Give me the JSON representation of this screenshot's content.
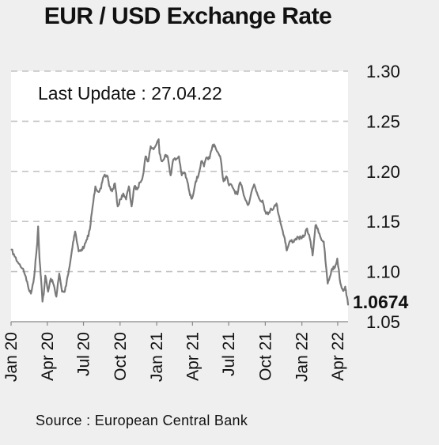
{
  "chart_data": {
    "type": "line",
    "title": "EUR / USD Exchange Rate",
    "annotation": "Last Update : 27.04.22",
    "source": "Source : European Central Bank",
    "ylim": [
      1.05,
      1.3
    ],
    "yticks": [
      "1.30",
      "1.25",
      "1.20",
      "1.15",
      "1.10",
      "1.05"
    ],
    "xlim": [
      "2020-01-01",
      "2022-04-27"
    ],
    "xticks": [
      {
        "label": "Jan 20",
        "date": "2020-01-01"
      },
      {
        "label": "Apr 20",
        "date": "2020-04-01"
      },
      {
        "label": "Jul 20",
        "date": "2020-07-01"
      },
      {
        "label": "Oct 20",
        "date": "2020-10-01"
      },
      {
        "label": "Jan 21",
        "date": "2021-01-01"
      },
      {
        "label": "Apr 21",
        "date": "2021-04-01"
      },
      {
        "label": "Jul 21",
        "date": "2021-07-01"
      },
      {
        "label": "Oct 21",
        "date": "2021-10-01"
      },
      {
        "label": "Jan 22",
        "date": "2022-01-01"
      },
      {
        "label": "Apr 22",
        "date": "2022-04-01"
      }
    ],
    "grid": "horizontal dashed",
    "last_value": "1.0674",
    "line_color": "#7a7a7a",
    "series": [
      {
        "x": [
          "2020-01-02",
          "2020-01-10",
          "2020-01-20",
          "2020-01-31",
          "2020-02-07",
          "2020-02-14",
          "2020-02-20",
          "2020-02-28",
          "2020-03-06",
          "2020-03-09",
          "2020-03-13",
          "2020-03-16",
          "2020-03-20",
          "2020-03-24",
          "2020-03-27",
          "2020-04-03",
          "2020-04-10",
          "2020-04-17",
          "2020-04-24",
          "2020-05-01",
          "2020-05-08",
          "2020-05-15",
          "2020-05-22",
          "2020-05-29",
          "2020-06-05",
          "2020-06-10",
          "2020-06-19",
          "2020-06-26",
          "2020-07-03",
          "2020-07-10",
          "2020-07-17",
          "2020-07-24",
          "2020-07-31",
          "2020-08-07",
          "2020-08-14",
          "2020-08-21",
          "2020-08-31",
          "2020-09-04",
          "2020-09-11",
          "2020-09-18",
          "2020-09-25",
          "2020-10-02",
          "2020-10-09",
          "2020-10-16",
          "2020-10-23",
          "2020-10-30",
          "2020-11-06",
          "2020-11-13",
          "2020-11-20",
          "2020-11-27",
          "2020-12-04",
          "2020-12-11",
          "2020-12-17",
          "2020-12-24",
          "2021-01-06",
          "2021-01-08",
          "2021-01-15",
          "2021-01-22",
          "2021-01-29",
          "2021-02-05",
          "2021-02-12",
          "2021-02-19",
          "2021-02-26",
          "2021-03-05",
          "2021-03-12",
          "2021-03-19",
          "2021-03-26",
          "2021-03-31",
          "2021-04-09",
          "2021-04-16",
          "2021-04-23",
          "2021-04-30",
          "2021-05-07",
          "2021-05-14",
          "2021-05-21",
          "2021-05-25",
          "2021-06-04",
          "2021-06-11",
          "2021-06-18",
          "2021-06-25",
          "2021-07-02",
          "2021-07-09",
          "2021-07-16",
          "2021-07-23",
          "2021-07-30",
          "2021-08-06",
          "2021-08-13",
          "2021-08-20",
          "2021-08-27",
          "2021-09-03",
          "2021-09-10",
          "2021-09-17",
          "2021-09-24",
          "2021-10-01",
          "2021-10-08",
          "2021-10-15",
          "2021-10-22",
          "2021-10-29",
          "2021-11-05",
          "2021-11-12",
          "2021-11-19",
          "2021-11-24",
          "2021-12-03",
          "2021-12-10",
          "2021-12-17",
          "2021-12-24",
          "2021-12-31",
          "2022-01-07",
          "2022-01-14",
          "2022-01-21",
          "2022-01-28",
          "2022-02-04",
          "2022-02-10",
          "2022-02-18",
          "2022-02-25",
          "2022-03-01",
          "2022-03-07",
          "2022-03-11",
          "2022-03-18",
          "2022-03-25",
          "2022-03-31",
          "2022-04-08",
          "2022-04-14",
          "2022-04-20",
          "2022-04-22",
          "2022-04-27"
        ],
        "values": [
          1.122,
          1.115,
          1.108,
          1.103,
          1.095,
          1.083,
          1.078,
          1.095,
          1.125,
          1.145,
          1.11,
          1.095,
          1.07,
          1.081,
          1.096,
          1.08,
          1.093,
          1.087,
          1.075,
          1.098,
          1.08,
          1.08,
          1.095,
          1.11,
          1.13,
          1.14,
          1.12,
          1.122,
          1.125,
          1.132,
          1.142,
          1.165,
          1.185,
          1.18,
          1.183,
          1.195,
          1.195,
          1.185,
          1.18,
          1.188,
          1.165,
          1.172,
          1.178,
          1.172,
          1.185,
          1.165,
          1.185,
          1.182,
          1.189,
          1.195,
          1.215,
          1.21,
          1.225,
          1.222,
          1.232,
          1.218,
          1.21,
          1.216,
          1.214,
          1.196,
          1.212,
          1.212,
          1.215,
          1.196,
          1.199,
          1.19,
          1.176,
          1.173,
          1.19,
          1.196,
          1.21,
          1.205,
          1.214,
          1.213,
          1.225,
          1.227,
          1.219,
          1.212,
          1.19,
          1.195,
          1.186,
          1.186,
          1.18,
          1.177,
          1.189,
          1.18,
          1.171,
          1.167,
          1.179,
          1.187,
          1.179,
          1.172,
          1.171,
          1.16,
          1.157,
          1.163,
          1.163,
          1.168,
          1.155,
          1.143,
          1.133,
          1.121,
          1.131,
          1.13,
          1.133,
          1.134,
          1.133,
          1.136,
          1.143,
          1.133,
          1.116,
          1.146,
          1.143,
          1.133,
          1.13,
          1.112,
          1.088,
          1.093,
          1.103,
          1.104,
          1.113,
          1.088,
          1.081,
          1.085,
          1.08,
          1.067
        ]
      }
    ]
  }
}
